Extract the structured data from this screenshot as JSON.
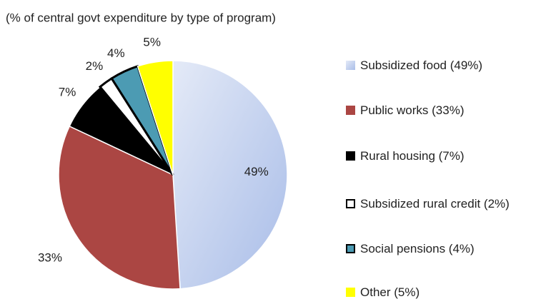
{
  "chart_data": {
    "type": "pie",
    "title": "(% of central govt expenditure by type of program)",
    "categories": [
      "Subsidized food (49%)",
      "Public works (33%)",
      "Rural housing (7%)",
      "Subsidized rural credit (2%)",
      "Social pensions (4%)",
      "Other (5%)"
    ],
    "values": [
      49,
      33,
      7,
      2,
      4,
      5
    ],
    "value_labels": [
      "49%",
      "33%",
      "7%",
      "2%",
      "4%",
      "5%"
    ],
    "colors": [
      "#c5d2ee",
      "#ab4643",
      "#000000",
      "#ffffff",
      "#4c9bb3",
      "#ffff00"
    ],
    "edge_colors": [
      "#ffffff",
      "#ffffff",
      "#ffffff",
      "#000000",
      "#000000",
      "#ffffff"
    ],
    "legend": "right"
  }
}
